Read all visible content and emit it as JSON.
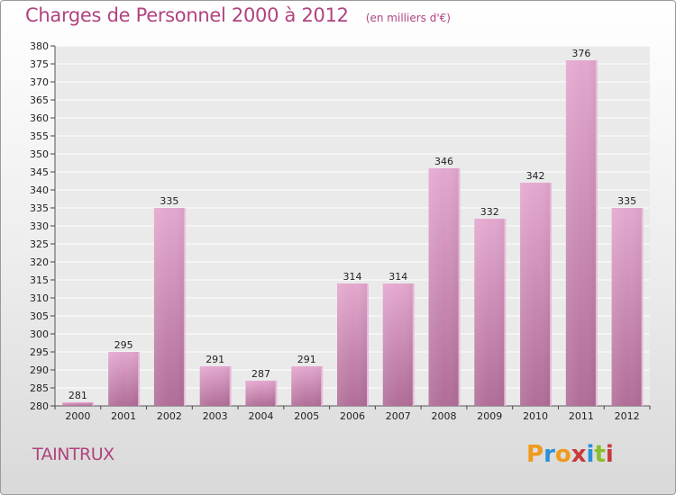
{
  "chart_data": {
    "type": "bar",
    "title": "Charges de Personnel 2000 à 2012",
    "subtitle": "(en milliers d'€)",
    "categories": [
      "2000",
      "2001",
      "2002",
      "2003",
      "2004",
      "2005",
      "2006",
      "2007",
      "2008",
      "2009",
      "2010",
      "2011",
      "2012"
    ],
    "values": [
      281,
      295,
      335,
      291,
      287,
      291,
      314,
      314,
      346,
      332,
      342,
      376,
      335
    ],
    "ylim": [
      280,
      380
    ],
    "ytick_step": 5,
    "grid": true,
    "legend": "none",
    "bar_color": "#d98fbd"
  },
  "commune": "TAINTRUX",
  "logo": {
    "letters": [
      "P",
      "r",
      "o",
      "x",
      "i",
      "t",
      "i"
    ],
    "colors": [
      "#f09a1c",
      "#2d8fd8",
      "#f09a1c",
      "#c83a3a",
      "#2d8fd8",
      "#8abf2a",
      "#c83a3a"
    ]
  }
}
